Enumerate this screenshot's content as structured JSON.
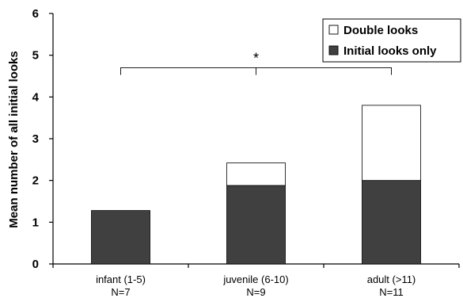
{
  "chart_data": {
    "type": "bar",
    "stacked": true,
    "categories": [
      "infant (1-5)",
      "juvenile (6-10)",
      "adult (>11)"
    ],
    "category_counts": [
      "N=7",
      "N=9",
      "N=11"
    ],
    "series": [
      {
        "name": "Initial looks only",
        "values": [
          1.28,
          1.88,
          2.0
        ],
        "color": "#404040"
      },
      {
        "name": "Double looks",
        "values": [
          0.0,
          0.54,
          1.8
        ],
        "color": "#ffffff"
      }
    ],
    "xlabel": "",
    "ylabel": "Mean number of all initial looks",
    "ylim": [
      0,
      6
    ],
    "yticks": [
      0,
      1,
      2,
      3,
      4,
      5,
      6
    ],
    "grid": false,
    "legend": {
      "placement": "top-right",
      "order": [
        "Double looks",
        "Initial looks only"
      ]
    },
    "annotations": [
      {
        "type": "significance-bracket",
        "text": "*",
        "spans": [
          "infant (1-5)",
          "adult (>11)"
        ]
      }
    ]
  }
}
